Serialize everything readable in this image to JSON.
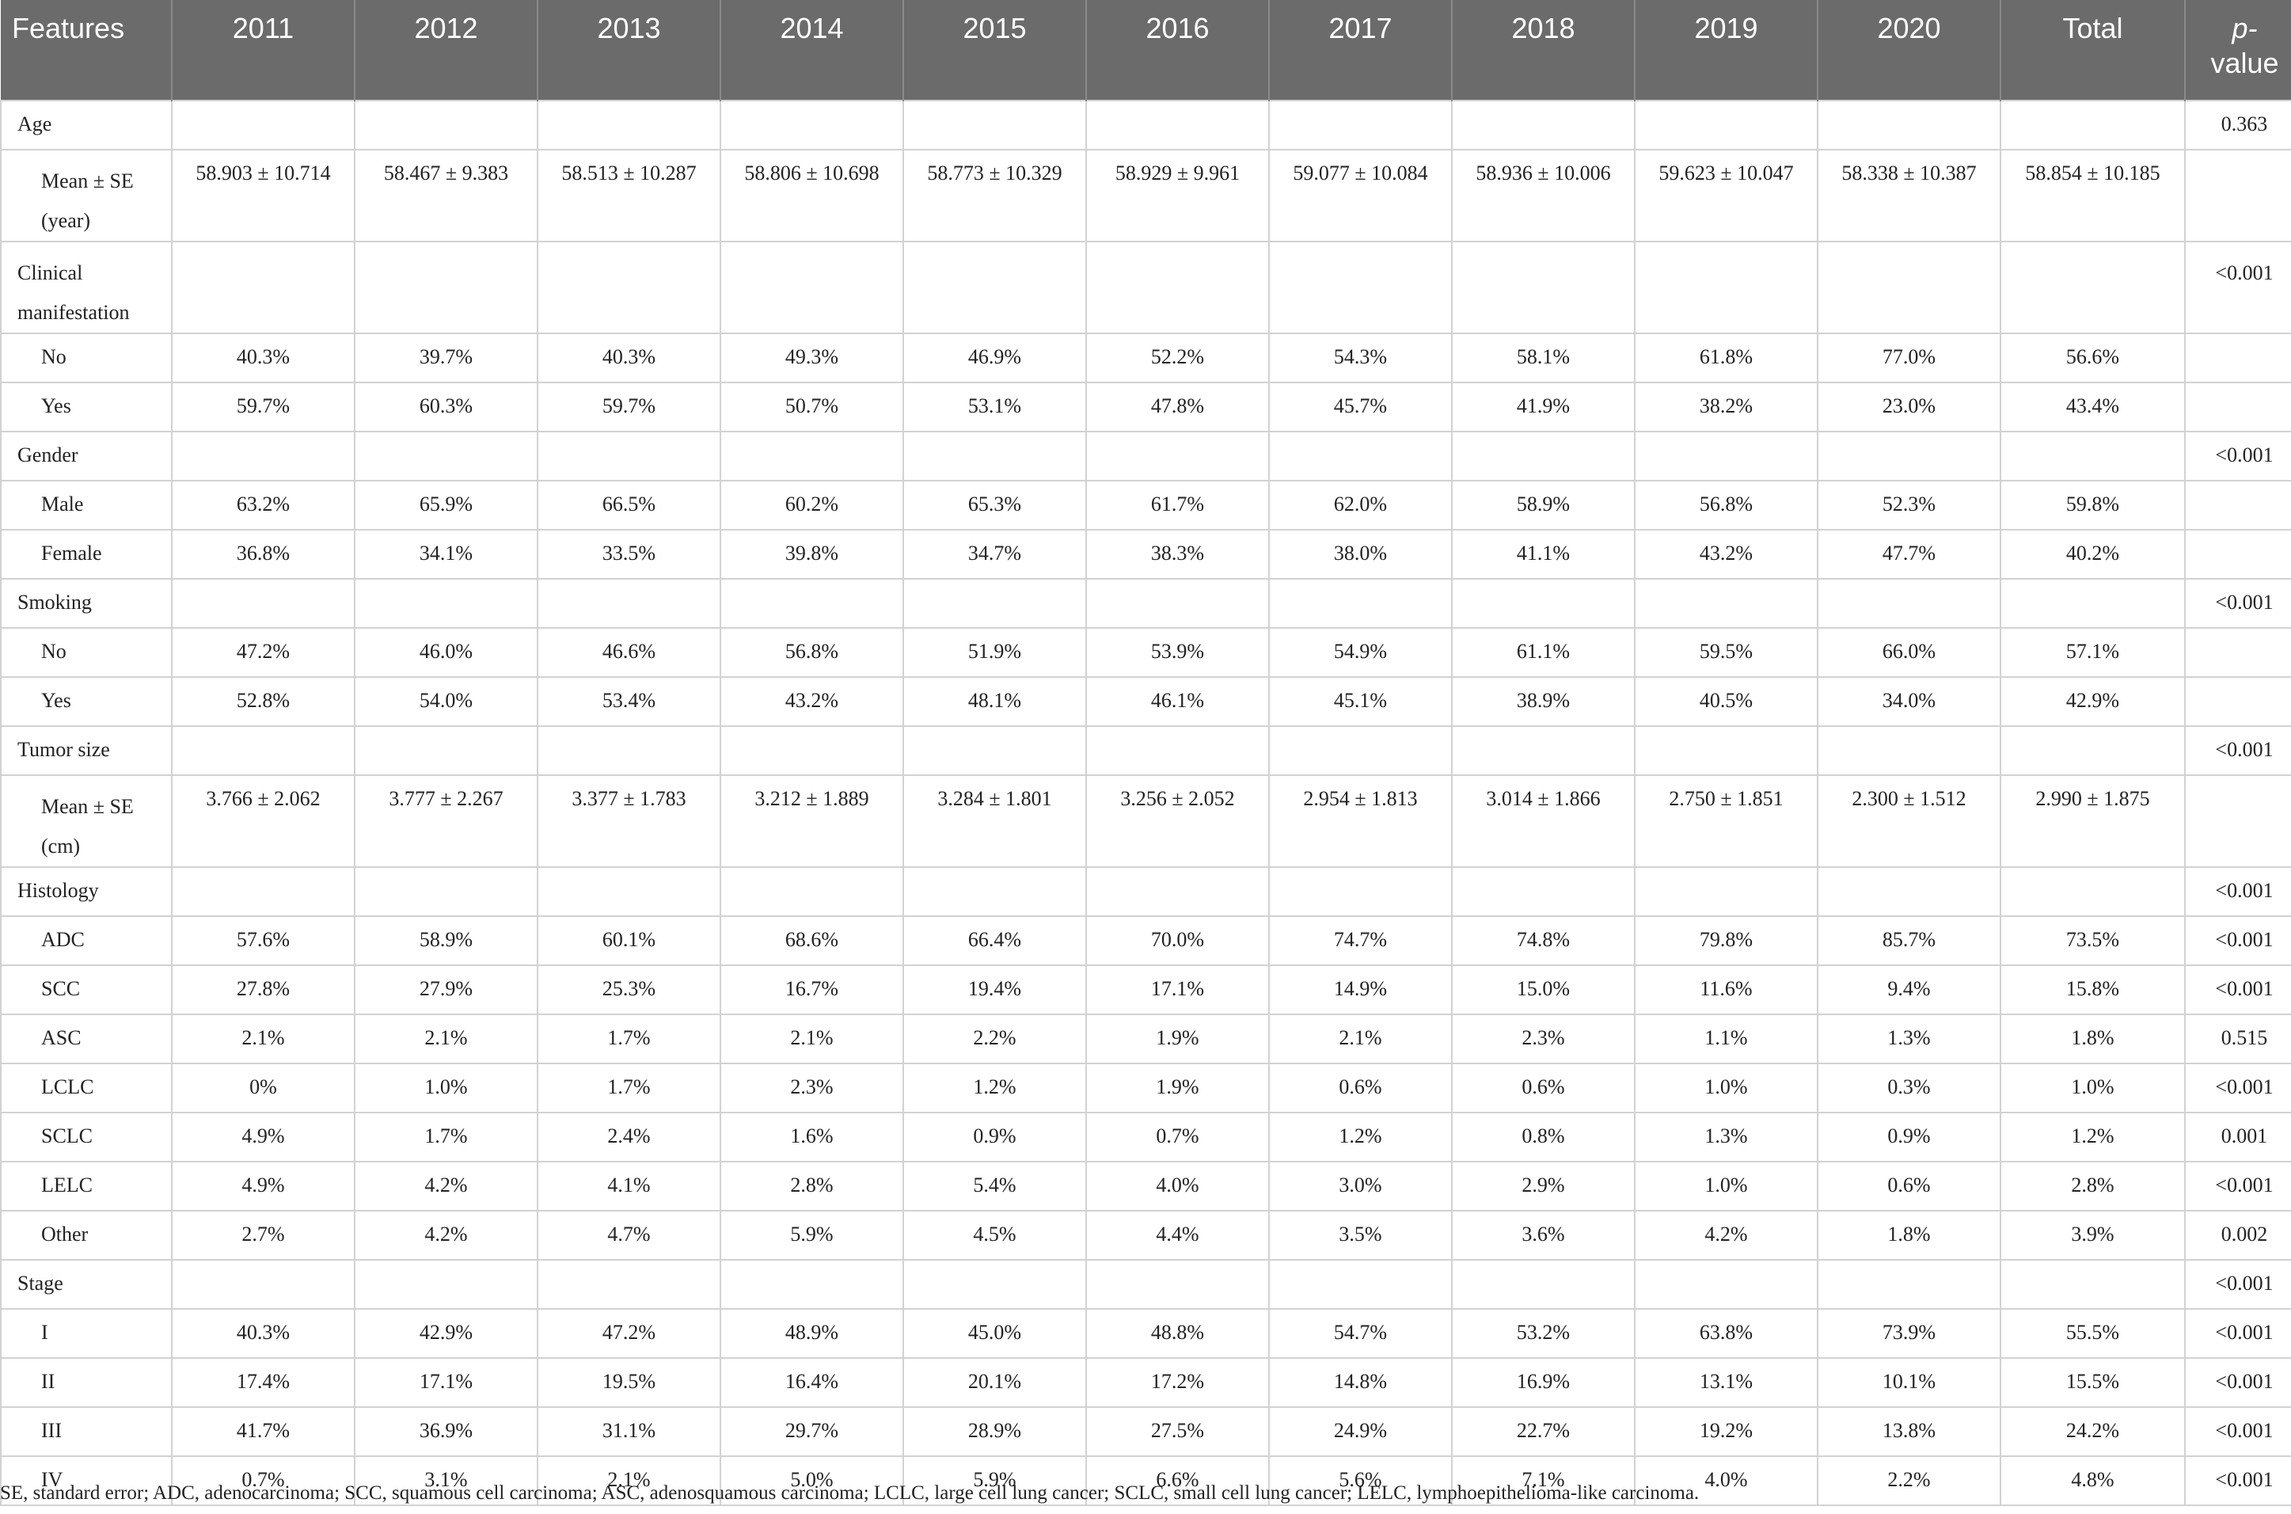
{
  "header": {
    "features": "Features",
    "years": [
      "2011",
      "2012",
      "2013",
      "2014",
      "2015",
      "2016",
      "2017",
      "2018",
      "2019",
      "2020"
    ],
    "total": "Total",
    "p_value_line1": "p-",
    "p_value_line2": "value"
  },
  "rows": [
    {
      "label": "Age",
      "sub": false,
      "tall": false,
      "values": [
        "",
        "",
        "",
        "",
        "",
        "",
        "",
        "",
        "",
        "",
        ""
      ],
      "p": "0.363"
    },
    {
      "label": "Mean ± SE (year)",
      "sub": true,
      "tall": true,
      "values": [
        "58.903 ± 10.714",
        "58.467 ± 9.383",
        "58.513 ± 10.287",
        "58.806 ± 10.698",
        "58.773 ± 10.329",
        "58.929 ± 9.961",
        "59.077 ± 10.084",
        "58.936 ± 10.006",
        "59.623 ± 10.047",
        "58.338 ± 10.387",
        "58.854 ± 10.185"
      ],
      "p": ""
    },
    {
      "label": "Clinical manifestation",
      "sub": false,
      "tall": true,
      "values": [
        "",
        "",
        "",
        "",
        "",
        "",
        "",
        "",
        "",
        "",
        ""
      ],
      "p": "<0.001"
    },
    {
      "label": "No",
      "sub": true,
      "tall": false,
      "values": [
        "40.3%",
        "39.7%",
        "40.3%",
        "49.3%",
        "46.9%",
        "52.2%",
        "54.3%",
        "58.1%",
        "61.8%",
        "77.0%",
        "56.6%"
      ],
      "p": ""
    },
    {
      "label": "Yes",
      "sub": true,
      "tall": false,
      "values": [
        "59.7%",
        "60.3%",
        "59.7%",
        "50.7%",
        "53.1%",
        "47.8%",
        "45.7%",
        "41.9%",
        "38.2%",
        "23.0%",
        "43.4%"
      ],
      "p": ""
    },
    {
      "label": "Gender",
      "sub": false,
      "tall": false,
      "values": [
        "",
        "",
        "",
        "",
        "",
        "",
        "",
        "",
        "",
        "",
        ""
      ],
      "p": "<0.001"
    },
    {
      "label": "Male",
      "sub": true,
      "tall": false,
      "values": [
        "63.2%",
        "65.9%",
        "66.5%",
        "60.2%",
        "65.3%",
        "61.7%",
        "62.0%",
        "58.9%",
        "56.8%",
        "52.3%",
        "59.8%"
      ],
      "p": ""
    },
    {
      "label": "Female",
      "sub": true,
      "tall": false,
      "values": [
        "36.8%",
        "34.1%",
        "33.5%",
        "39.8%",
        "34.7%",
        "38.3%",
        "38.0%",
        "41.1%",
        "43.2%",
        "47.7%",
        "40.2%"
      ],
      "p": ""
    },
    {
      "label": "Smoking",
      "sub": false,
      "tall": false,
      "values": [
        "",
        "",
        "",
        "",
        "",
        "",
        "",
        "",
        "",
        "",
        ""
      ],
      "p": "<0.001"
    },
    {
      "label": "No",
      "sub": true,
      "tall": false,
      "values": [
        "47.2%",
        "46.0%",
        "46.6%",
        "56.8%",
        "51.9%",
        "53.9%",
        "54.9%",
        "61.1%",
        "59.5%",
        "66.0%",
        "57.1%"
      ],
      "p": ""
    },
    {
      "label": "Yes",
      "sub": true,
      "tall": false,
      "values": [
        "52.8%",
        "54.0%",
        "53.4%",
        "43.2%",
        "48.1%",
        "46.1%",
        "45.1%",
        "38.9%",
        "40.5%",
        "34.0%",
        "42.9%"
      ],
      "p": ""
    },
    {
      "label": "Tumor size",
      "sub": false,
      "tall": false,
      "values": [
        "",
        "",
        "",
        "",
        "",
        "",
        "",
        "",
        "",
        "",
        ""
      ],
      "p": "<0.001"
    },
    {
      "label": "Mean ± SE (cm)",
      "sub": true,
      "tall": true,
      "values": [
        "3.766 ± 2.062",
        "3.777 ± 2.267",
        "3.377 ± 1.783",
        "3.212 ± 1.889",
        "3.284 ± 1.801",
        "3.256 ± 2.052",
        "2.954 ± 1.813",
        "3.014 ± 1.866",
        "2.750 ± 1.851",
        "2.300 ± 1.512",
        "2.990 ± 1.875"
      ],
      "p": ""
    },
    {
      "label": "Histology",
      "sub": false,
      "tall": false,
      "values": [
        "",
        "",
        "",
        "",
        "",
        "",
        "",
        "",
        "",
        "",
        ""
      ],
      "p": "<0.001"
    },
    {
      "label": "ADC",
      "sub": true,
      "tall": false,
      "values": [
        "57.6%",
        "58.9%",
        "60.1%",
        "68.6%",
        "66.4%",
        "70.0%",
        "74.7%",
        "74.8%",
        "79.8%",
        "85.7%",
        "73.5%"
      ],
      "p": "<0.001"
    },
    {
      "label": "SCC",
      "sub": true,
      "tall": false,
      "values": [
        "27.8%",
        "27.9%",
        "25.3%",
        "16.7%",
        "19.4%",
        "17.1%",
        "14.9%",
        "15.0%",
        "11.6%",
        "9.4%",
        "15.8%"
      ],
      "p": "<0.001"
    },
    {
      "label": "ASC",
      "sub": true,
      "tall": false,
      "values": [
        "2.1%",
        "2.1%",
        "1.7%",
        "2.1%",
        "2.2%",
        "1.9%",
        "2.1%",
        "2.3%",
        "1.1%",
        "1.3%",
        "1.8%"
      ],
      "p": "0.515"
    },
    {
      "label": "LCLC",
      "sub": true,
      "tall": false,
      "values": [
        "0%",
        "1.0%",
        "1.7%",
        "2.3%",
        "1.2%",
        "1.9%",
        "0.6%",
        "0.6%",
        "1.0%",
        "0.3%",
        "1.0%"
      ],
      "p": "<0.001"
    },
    {
      "label": "SCLC",
      "sub": true,
      "tall": false,
      "values": [
        "4.9%",
        "1.7%",
        "2.4%",
        "1.6%",
        "0.9%",
        "0.7%",
        "1.2%",
        "0.8%",
        "1.3%",
        "0.9%",
        "1.2%"
      ],
      "p": "0.001"
    },
    {
      "label": "LELC",
      "sub": true,
      "tall": false,
      "values": [
        "4.9%",
        "4.2%",
        "4.1%",
        "2.8%",
        "5.4%",
        "4.0%",
        "3.0%",
        "2.9%",
        "1.0%",
        "0.6%",
        "2.8%"
      ],
      "p": "<0.001"
    },
    {
      "label": "Other",
      "sub": true,
      "tall": false,
      "values": [
        "2.7%",
        "4.2%",
        "4.7%",
        "5.9%",
        "4.5%",
        "4.4%",
        "3.5%",
        "3.6%",
        "4.2%",
        "1.8%",
        "3.9%"
      ],
      "p": "0.002"
    },
    {
      "label": "Stage",
      "sub": false,
      "tall": false,
      "values": [
        "",
        "",
        "",
        "",
        "",
        "",
        "",
        "",
        "",
        "",
        ""
      ],
      "p": "<0.001"
    },
    {
      "label": "I",
      "sub": true,
      "tall": false,
      "values": [
        "40.3%",
        "42.9%",
        "47.2%",
        "48.9%",
        "45.0%",
        "48.8%",
        "54.7%",
        "53.2%",
        "63.8%",
        "73.9%",
        "55.5%"
      ],
      "p": "<0.001"
    },
    {
      "label": "II",
      "sub": true,
      "tall": false,
      "values": [
        "17.4%",
        "17.1%",
        "19.5%",
        "16.4%",
        "20.1%",
        "17.2%",
        "14.8%",
        "16.9%",
        "13.1%",
        "10.1%",
        "15.5%"
      ],
      "p": "<0.001"
    },
    {
      "label": "III",
      "sub": true,
      "tall": false,
      "values": [
        "41.7%",
        "36.9%",
        "31.1%",
        "29.7%",
        "28.9%",
        "27.5%",
        "24.9%",
        "22.7%",
        "19.2%",
        "13.8%",
        "24.2%"
      ],
      "p": "<0.001"
    },
    {
      "label": "IV",
      "sub": true,
      "tall": false,
      "values": [
        "0.7%",
        "3.1%",
        "2.1%",
        "5.0%",
        "5.9%",
        "6.6%",
        "5.6%",
        "7.1%",
        "4.0%",
        "2.2%",
        "4.8%"
      ],
      "p": "<0.001"
    }
  ],
  "footnote": "SE, standard error; ADC, adenocarcinoma; SCC, squamous cell carcinoma; ASC, adenosquamous carcinoma; LCLC, large cell lung cancer; SCLC, small cell lung cancer; LELC, lymphoepithelioma-like carcinoma."
}
